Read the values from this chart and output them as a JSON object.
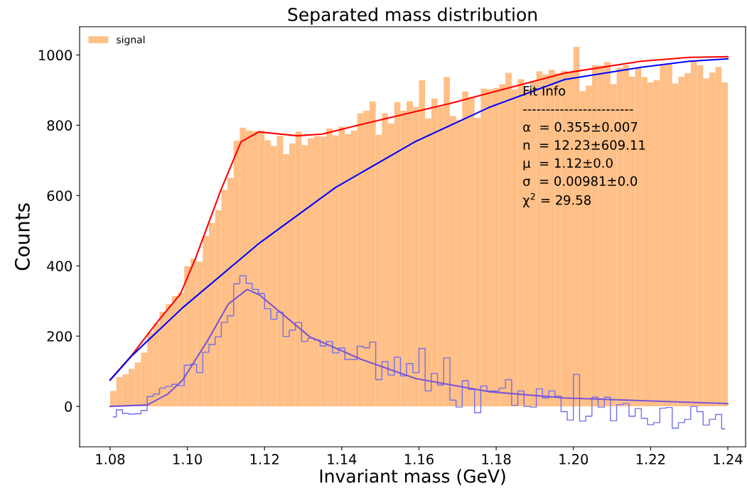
{
  "chart_data": {
    "type": "histogram",
    "title": "Separated mass distribution",
    "xlabel": "Invariant mass (GeV)",
    "ylabel": "Counts",
    "bins": [
      1.08,
      1.0816,
      1.0832,
      1.0848,
      1.0864,
      1.088,
      1.0896,
      1.0912,
      1.0928,
      1.0944,
      1.096,
      1.0976,
      1.0992,
      1.1008,
      1.1024,
      1.104,
      1.1056,
      1.1072,
      1.1088,
      1.1104,
      1.112,
      1.1136,
      1.1152,
      1.1168,
      1.1184,
      1.12,
      1.1216,
      1.1232,
      1.1248,
      1.1264,
      1.128,
      1.1296,
      1.1312,
      1.1328,
      1.1344,
      1.136,
      1.1376,
      1.1392,
      1.1408,
      1.1424,
      1.144,
      1.1456,
      1.1472,
      1.1488,
      1.1504,
      1.152,
      1.1536,
      1.1552,
      1.1568,
      1.1584,
      1.16,
      1.1616,
      1.1632,
      1.1648,
      1.1664,
      1.168,
      1.1696,
      1.1712,
      1.1728,
      1.1744,
      1.176,
      1.1776,
      1.1792,
      1.1808,
      1.1824,
      1.184,
      1.1856,
      1.1872,
      1.1888,
      1.1904,
      1.192,
      1.1936,
      1.1952,
      1.1968,
      1.1984,
      1.2,
      1.2016,
      1.2032,
      1.2048,
      1.2064,
      1.208,
      1.2096,
      1.2112,
      1.2128,
      1.2144,
      1.216,
      1.2176,
      1.2192,
      1.2208,
      1.2224,
      1.224,
      1.2256,
      1.2272,
      1.2288,
      1.2304,
      1.232,
      1.2336,
      1.2352,
      1.2368,
      1.2384,
      1.24
    ],
    "series": [
      {
        "name": "signal",
        "color": "#ffbf86",
        "values": [
          44,
          83,
          91,
          107,
          125,
          153,
          210,
          236,
          269,
          291,
          314,
          324,
          399,
          420,
          412,
          485,
          522,
          558,
          616,
          650,
          756,
          793,
          785,
          783,
          785,
          757,
          741,
          770,
          718,
          748,
          782,
          743,
          763,
          769,
          768,
          791,
          771,
          796,
          775,
          785,
          834,
          841,
          868,
          773,
          834,
          805,
          866,
          841,
          868,
          852,
          928,
          819,
          876,
          852,
          937,
          826,
          816,
          896,
          877,
          821,
          904,
          902,
          906,
          917,
          949,
          902,
          931,
          901,
          926,
          953,
          944,
          958,
          948,
          955,
          950,
          1023,
          897,
          913,
          971,
          970,
          980,
          917,
          964,
          971,
          938,
          963,
          937,
          922,
          928,
          973,
          975,
          919,
          938,
          948,
          984,
          971,
          933,
          950,
          966,
          922
        ]
      },
      {
        "type": "step",
        "color": "#7070f0",
        "x": [
          1.0808,
          1.0824,
          1.084,
          1.0856,
          1.0872,
          1.0888,
          1.0904,
          1.092,
          1.0936,
          1.0952,
          1.0968,
          1.0984,
          1.1,
          1.1016,
          1.1032,
          1.1048,
          1.1064,
          1.108,
          1.1096,
          1.1112,
          1.1128,
          1.1144,
          1.116,
          1.1176,
          1.1192,
          1.1208,
          1.1224,
          1.124,
          1.1256,
          1.1272,
          1.1288,
          1.1304,
          1.132,
          1.1336,
          1.1352,
          1.1368,
          1.1384,
          1.14,
          1.1416,
          1.1432,
          1.1448,
          1.1464,
          1.148,
          1.1496,
          1.1512,
          1.1528,
          1.1544,
          1.156,
          1.1576,
          1.1592,
          1.1608,
          1.1624,
          1.164,
          1.1656,
          1.1672,
          1.1688,
          1.1704,
          1.172,
          1.1736,
          1.1752,
          1.1768,
          1.1784,
          1.18,
          1.1816,
          1.1832,
          1.1848,
          1.1864,
          1.188,
          1.1896,
          1.1912,
          1.1928,
          1.1944,
          1.196,
          1.1976,
          1.1992,
          1.2008,
          1.2024,
          1.204,
          1.2056,
          1.2072,
          1.2088,
          1.2104,
          1.212,
          1.2136,
          1.2152,
          1.2168,
          1.2184,
          1.22,
          1.2216,
          1.2232,
          1.2248,
          1.2264,
          1.228,
          1.2296,
          1.2312,
          1.2328,
          1.2344,
          1.236,
          1.2376,
          1.2392
        ],
        "values": [
          -30,
          -10,
          -20,
          -22,
          -21,
          -12,
          28,
          35,
          52,
          57,
          63,
          59,
          117,
          120,
          96,
          154,
          176,
          198,
          239,
          258,
          349,
          372,
          350,
          333,
          321,
          278,
          248,
          268,
          199,
          217,
          239,
          185,
          194,
          189,
          172,
          185,
          152,
          166,
          133,
          133,
          171,
          167,
          183,
          76,
          127,
          89,
          140,
          87,
          122,
          96,
          165,
          44,
          94,
          61,
          138,
          18,
          -2,
          73,
          48,
          -18,
          58,
          44,
          44,
          52,
          76,
          3,
          44,
          0,
          -2,
          50,
          24,
          44,
          29,
          -15,
          -39,
          91,
          -42,
          -28,
          26,
          -2,
          26,
          -41,
          5,
          8,
          -28,
          -6,
          -34,
          -52,
          -46,
          -5,
          -3,
          -62,
          -46,
          -37,
          0,
          -15,
          -53,
          -37,
          -23,
          -64
        ]
      },
      {
        "type": "line",
        "color": "#ff0000",
        "x": [
          1.08,
          1.0857,
          1.0922,
          1.0982,
          1.1021,
          1.1087,
          1.1139,
          1.1185,
          1.1285,
          1.135,
          1.145,
          1.158,
          1.168,
          1.178,
          1.188,
          1.198,
          1.2175,
          1.23,
          1.24
        ],
        "values": [
          75,
          147,
          240,
          320,
          421,
          616,
          753,
          781,
          770,
          775,
          802,
          836,
          862,
          891,
          920,
          949,
          982,
          993,
          995
        ]
      },
      {
        "type": "line",
        "color": "#0000ff",
        "x": [
          1.08,
          1.0857,
          1.0988,
          1.1187,
          1.1384,
          1.1588,
          1.178,
          1.1977,
          1.2175,
          1.23,
          1.24
        ],
        "values": [
          75,
          145,
          281,
          465,
          623,
          752,
          850,
          930,
          965,
          982,
          989
        ]
      },
      {
        "type": "line",
        "color": "#7b55d6",
        "x": [
          1.08,
          1.0896,
          1.0949,
          1.0988,
          1.1054,
          1.1106,
          1.1155,
          1.1187,
          1.1317,
          1.145,
          1.1592,
          1.178,
          1.1977,
          1.24
        ],
        "values": [
          0,
          4,
          35,
          75,
          190,
          291,
          333,
          317,
          198,
          134,
          79,
          42,
          24,
          8
        ]
      }
    ],
    "xlim": [
      1.0721,
      1.2446
    ],
    "ylim": [
      -115,
      1080
    ],
    "xticks": [
      1.08,
      {
        "value": 1.1,
        "label": "1.10"
      },
      1.12,
      1.14,
      1.16,
      1.18,
      {
        "value": 1.2,
        "label": "1.20"
      },
      1.22,
      1.24
    ],
    "yticks": [
      0,
      200,
      400,
      600,
      800,
      1000
    ],
    "legend": "top left",
    "grid": false,
    "annotations": [
      "Fit Info",
      "------------------------",
      "α  = 0.355±0.007",
      "n  = 12.23±609.11",
      "μ  = 1.12±0.0",
      "σ  = 0.00981±0.0",
      "χ$^{2}$ = 29.58"
    ]
  }
}
